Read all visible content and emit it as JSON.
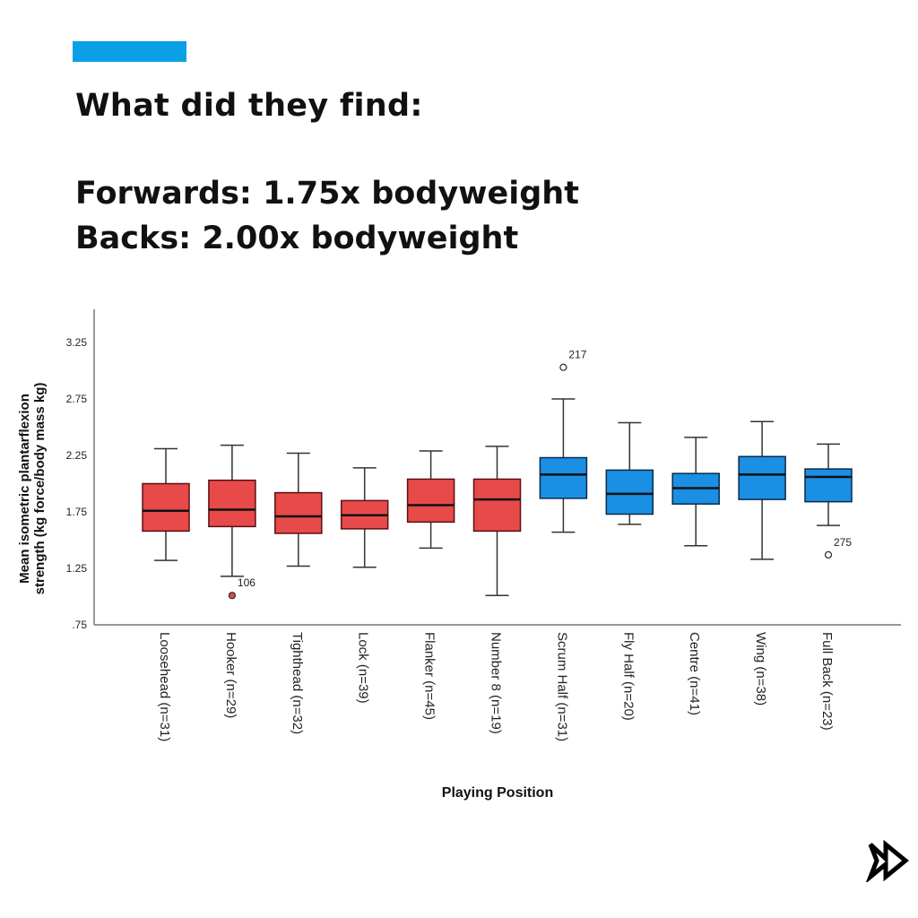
{
  "header": {
    "title": "What did they find:",
    "line1": "Forwards: 1.75x bodyweight",
    "line2": "Backs: 2.00x bodyweight",
    "accent_color": "#0aa0e6"
  },
  "nav": {
    "next_icon": "fast-forward-icon"
  },
  "chart_data": {
    "type": "boxplot",
    "xlabel": "Playing Position",
    "ylabel_line1": "Mean isometric plantarflexion",
    "ylabel_line2": "strength (kg force/body mass kg)",
    "ylim": [
      0.75,
      3.6
    ],
    "yticks": [
      0.75,
      1.25,
      1.75,
      2.25,
      2.75,
      3.25
    ],
    "ytick_labels": [
      ".75",
      "1.25",
      "1.75",
      "2.25",
      "2.75",
      "3.25"
    ],
    "colors": {
      "forwards": "#e84a4a",
      "backs": "#1a8fe3"
    },
    "categories": [
      {
        "label": "Loosehead (n=31)",
        "group": "forwards",
        "min": 1.32,
        "q1": 1.58,
        "median": 1.76,
        "q3": 2.0,
        "max": 2.31,
        "outliers": []
      },
      {
        "label": "Hooker (n=29)",
        "group": "forwards",
        "min": 1.18,
        "q1": 1.62,
        "median": 1.77,
        "q3": 2.03,
        "max": 2.34,
        "outliers": [
          {
            "value": 1.01,
            "label": "106",
            "filled": true
          }
        ]
      },
      {
        "label": "Tighthead (n=32)",
        "group": "forwards",
        "min": 1.27,
        "q1": 1.56,
        "median": 1.71,
        "q3": 1.92,
        "max": 2.27,
        "outliers": []
      },
      {
        "label": "Lock (n=39)",
        "group": "forwards",
        "min": 1.26,
        "q1": 1.6,
        "median": 1.72,
        "q3": 1.85,
        "max": 2.14,
        "outliers": []
      },
      {
        "label": "Flanker (n=45)",
        "group": "forwards",
        "min": 1.43,
        "q1": 1.66,
        "median": 1.81,
        "q3": 2.04,
        "max": 2.29,
        "outliers": []
      },
      {
        "label": "Number 8 (n=19)",
        "group": "forwards",
        "min": 1.01,
        "q1": 1.58,
        "median": 1.86,
        "q3": 2.04,
        "max": 2.33,
        "outliers": []
      },
      {
        "label": "Scrum Half (n=31)",
        "group": "backs",
        "min": 1.57,
        "q1": 1.87,
        "median": 2.08,
        "q3": 2.23,
        "max": 2.75,
        "outliers": [
          {
            "value": 3.03,
            "label": "217",
            "filled": false
          }
        ]
      },
      {
        "label": "Fly Half (n=20)",
        "group": "backs",
        "min": 1.64,
        "q1": 1.73,
        "median": 1.91,
        "q3": 2.12,
        "max": 2.54,
        "outliers": []
      },
      {
        "label": "Centre (n=41)",
        "group": "backs",
        "min": 1.45,
        "q1": 1.82,
        "median": 1.96,
        "q3": 2.09,
        "max": 2.41,
        "outliers": []
      },
      {
        "label": "Wing (n=38)",
        "group": "backs",
        "min": 1.33,
        "q1": 1.86,
        "median": 2.08,
        "q3": 2.24,
        "max": 2.55,
        "outliers": []
      },
      {
        "label": "Full Back (n=23)",
        "group": "backs",
        "min": 1.63,
        "q1": 1.84,
        "median": 2.06,
        "q3": 2.13,
        "max": 2.35,
        "outliers": [
          {
            "value": 1.37,
            "label": "275",
            "filled": false
          }
        ]
      }
    ]
  }
}
